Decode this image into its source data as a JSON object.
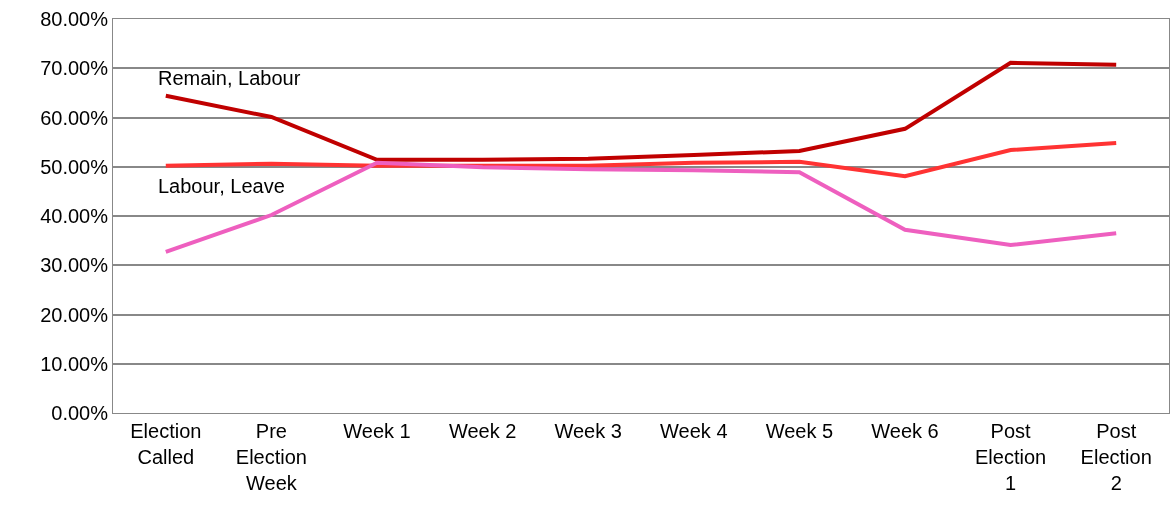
{
  "chart_data": {
    "type": "line",
    "categories": [
      "Election Called",
      "Pre Election Week",
      "Week 1",
      "Week 2",
      "Week 3",
      "Week 4",
      "Week 5",
      "Week 6",
      "Post Election 1",
      "Post Election 2"
    ],
    "series": [
      {
        "name": "Remain, Labour",
        "color": "#c00000",
        "values": [
          64.4,
          60.1,
          51.4,
          51.4,
          51.6,
          52.4,
          53.2,
          57.7,
          71.1,
          70.7
        ]
      },
      {
        "name": "Labour, Leave",
        "color": "#ff3333",
        "values": [
          50.2,
          50.6,
          50.2,
          50.2,
          50.2,
          50.8,
          51.0,
          48.1,
          53.4,
          54.8
        ]
      },
      {
        "color": "#ee5fbf",
        "values": [
          32.7,
          40.2,
          50.8,
          49.9,
          49.5,
          49.3,
          48.9,
          37.2,
          34.1,
          36.5
        ]
      }
    ],
    "ylim": [
      0,
      80
    ],
    "yticks": [
      {
        "value": 0,
        "label": "0.00%"
      },
      {
        "value": 10,
        "label": "10.00%"
      },
      {
        "value": 20,
        "label": "20.00%"
      },
      {
        "value": 30,
        "label": "30.00%"
      },
      {
        "value": 40,
        "label": "40.00%"
      },
      {
        "value": 50,
        "label": "50.00%"
      },
      {
        "value": 60,
        "label": "60.00%"
      },
      {
        "value": 70,
        "label": "70.00%"
      },
      {
        "value": 80,
        "label": "80.00%"
      }
    ],
    "grid": "y",
    "legend": false,
    "marker": "none",
    "line_style": "solid"
  }
}
